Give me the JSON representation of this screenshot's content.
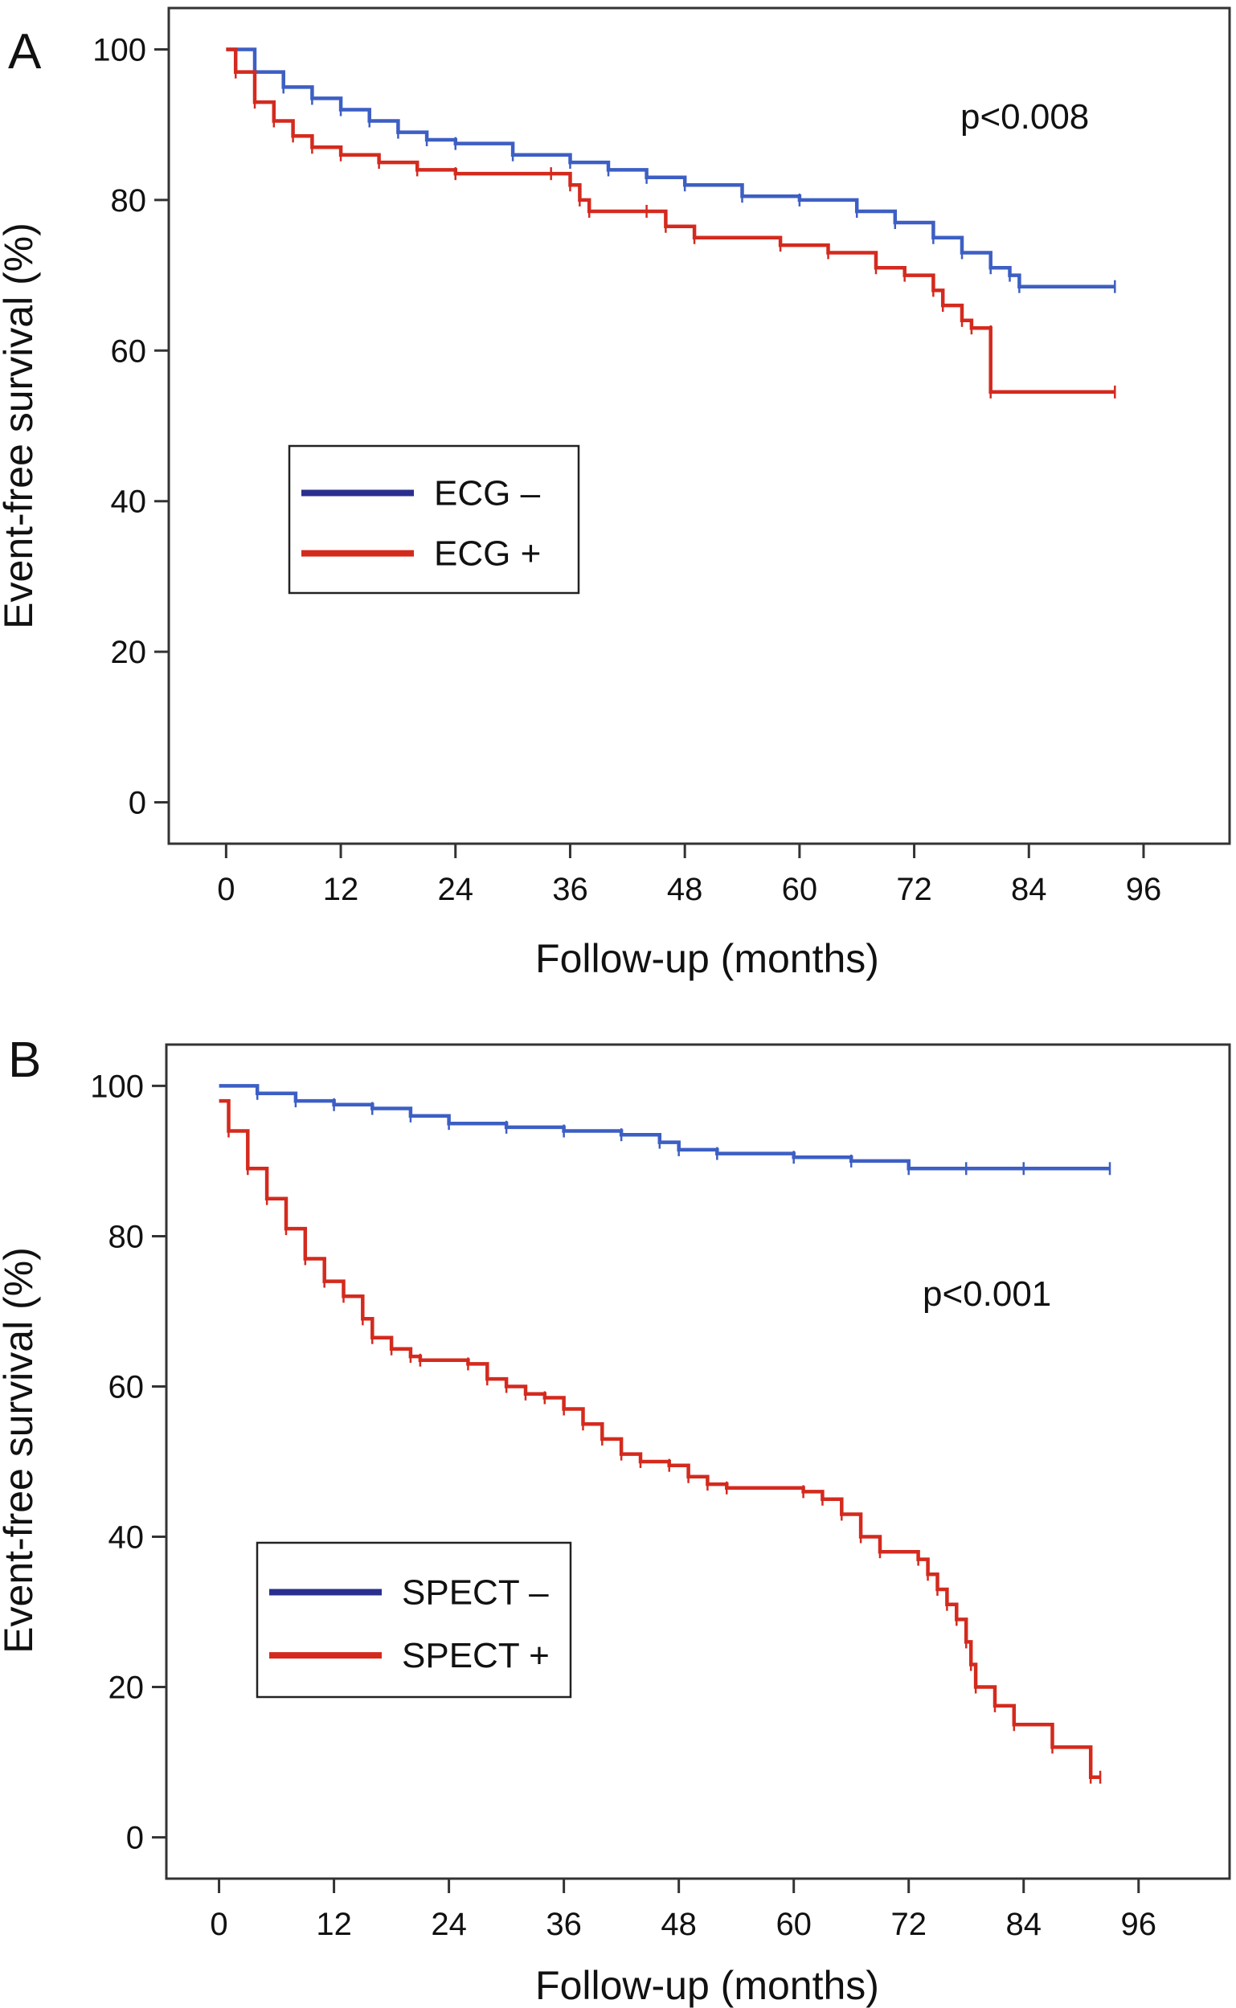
{
  "chart_data": [
    {
      "type": "line",
      "panel_label": "A",
      "xlabel": "Follow-up (months)",
      "ylabel": "Event-free survival (%)",
      "xticks": [
        0,
        12,
        24,
        36,
        48,
        60,
        72,
        84,
        96
      ],
      "yticks": [
        0,
        20,
        40,
        60,
        80,
        100
      ],
      "xlim": [
        -6,
        105
      ],
      "ylim": [
        -5.5,
        105.5
      ],
      "annotation": "p<0.008",
      "legend_position": "middle-left",
      "grid": false,
      "series": [
        {
          "name": "ECG –",
          "color": "#3d5fc4",
          "points": [
            [
              0,
              100
            ],
            [
              3,
              97
            ],
            [
              6,
              95
            ],
            [
              9,
              93.5
            ],
            [
              12,
              92
            ],
            [
              15,
              90.5
            ],
            [
              18,
              89
            ],
            [
              21,
              88
            ],
            [
              24,
              87.5
            ],
            [
              30,
              86
            ],
            [
              36,
              85
            ],
            [
              40,
              84
            ],
            [
              44,
              83
            ],
            [
              48,
              82
            ],
            [
              54,
              80.5
            ],
            [
              60,
              80
            ],
            [
              66,
              78.5
            ],
            [
              70,
              77
            ],
            [
              74,
              75
            ],
            [
              77,
              73
            ],
            [
              80,
              71
            ],
            [
              82,
              70
            ],
            [
              83,
              68.5
            ],
            [
              93,
              68.5
            ]
          ]
        },
        {
          "name": "ECG +",
          "color": "#d42a1e",
          "points": [
            [
              0,
              100
            ],
            [
              1,
              97
            ],
            [
              3,
              93
            ],
            [
              5,
              90.5
            ],
            [
              7,
              88.5
            ],
            [
              9,
              87
            ],
            [
              12,
              86
            ],
            [
              16,
              85
            ],
            [
              20,
              84
            ],
            [
              24,
              83.5
            ],
            [
              34,
              83.5
            ],
            [
              36,
              82
            ],
            [
              37,
              80
            ],
            [
              38,
              78.5
            ],
            [
              44,
              78.5
            ],
            [
              46,
              76.5
            ],
            [
              49,
              75
            ],
            [
              58,
              74
            ],
            [
              63,
              73
            ],
            [
              68,
              71
            ],
            [
              71,
              70
            ],
            [
              74,
              68
            ],
            [
              75,
              66
            ],
            [
              77,
              64
            ],
            [
              78,
              63
            ],
            [
              80,
              62.5
            ],
            [
              80,
              54.5
            ],
            [
              93,
              54.5
            ]
          ]
        }
      ]
    },
    {
      "type": "line",
      "panel_label": "B",
      "xlabel": "Follow-up (months)",
      "ylabel": "Event-free survival (%)",
      "xticks": [
        0,
        12,
        24,
        36,
        48,
        60,
        72,
        84,
        96
      ],
      "yticks": [
        0,
        20,
        40,
        60,
        80,
        100
      ],
      "xlim": [
        -5.5,
        105.5
      ],
      "ylim": [
        -5.5,
        105.5
      ],
      "annotation": "p<0.001",
      "legend_position": "bottom-left",
      "grid": false,
      "series": [
        {
          "name": "SPECT –",
          "color": "#3d5fc4",
          "points": [
            [
              0,
              100
            ],
            [
              4,
              99
            ],
            [
              8,
              98
            ],
            [
              12,
              97.5
            ],
            [
              16,
              97
            ],
            [
              20,
              96
            ],
            [
              24,
              95
            ],
            [
              30,
              94.5
            ],
            [
              36,
              94
            ],
            [
              42,
              93.5
            ],
            [
              46,
              92.5
            ],
            [
              48,
              91.5
            ],
            [
              52,
              91
            ],
            [
              60,
              90.5
            ],
            [
              66,
              90
            ],
            [
              72,
              89
            ],
            [
              78,
              89
            ],
            [
              84,
              89
            ],
            [
              93,
              89
            ]
          ]
        },
        {
          "name": "SPECT +",
          "color": "#d42a1e",
          "points": [
            [
              0,
              98
            ],
            [
              1,
              94
            ],
            [
              3,
              89
            ],
            [
              5,
              85
            ],
            [
              7,
              81
            ],
            [
              9,
              77
            ],
            [
              11,
              74
            ],
            [
              13,
              72
            ],
            [
              15,
              69
            ],
            [
              16,
              66.5
            ],
            [
              18,
              65
            ],
            [
              20,
              64
            ],
            [
              21,
              63.5
            ],
            [
              26,
              63
            ],
            [
              28,
              61
            ],
            [
              30,
              60
            ],
            [
              32,
              59
            ],
            [
              34,
              58.5
            ],
            [
              36,
              57
            ],
            [
              38,
              55
            ],
            [
              40,
              53
            ],
            [
              42,
              51
            ],
            [
              44,
              50
            ],
            [
              47,
              49.5
            ],
            [
              49,
              48
            ],
            [
              51,
              47
            ],
            [
              53,
              46.5
            ],
            [
              61,
              46
            ],
            [
              63,
              45
            ],
            [
              65,
              43
            ],
            [
              67,
              40
            ],
            [
              69,
              38
            ],
            [
              73,
              37
            ],
            [
              74,
              35
            ],
            [
              75,
              33
            ],
            [
              76,
              31
            ],
            [
              77,
              29
            ],
            [
              78,
              26
            ],
            [
              78.5,
              23
            ],
            [
              79,
              20
            ],
            [
              81,
              17.5
            ],
            [
              83,
              15
            ],
            [
              87,
              12
            ],
            [
              91,
              8
            ],
            [
              92,
              8
            ]
          ]
        }
      ]
    }
  ]
}
